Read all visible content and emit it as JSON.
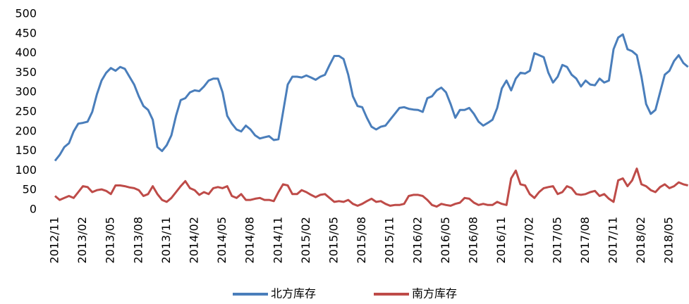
{
  "chart_data": {
    "type": "line",
    "categories": [
      "2012/11",
      null,
      null,
      null,
      null,
      null,
      "2013/02",
      null,
      null,
      null,
      null,
      null,
      "2013/05",
      null,
      null,
      null,
      null,
      null,
      "2013/08",
      null,
      null,
      null,
      null,
      null,
      "2013/11",
      null,
      null,
      null,
      null,
      null,
      "2014/02",
      null,
      null,
      null,
      null,
      null,
      "2014/05",
      null,
      null,
      null,
      null,
      null,
      "2014/08",
      null,
      null,
      null,
      null,
      null,
      "2014/11",
      null,
      null,
      null,
      null,
      null,
      "2015/02",
      null,
      null,
      null,
      null,
      null,
      "2015/05",
      null,
      null,
      null,
      null,
      null,
      "2015/08",
      null,
      null,
      null,
      null,
      null,
      "2015/11",
      null,
      null,
      null,
      null,
      null,
      "2016/02",
      null,
      null,
      null,
      null,
      null,
      "2016/05",
      null,
      null,
      null,
      null,
      null,
      "2016/08",
      null,
      null,
      null,
      null,
      null,
      "2016/11",
      null,
      null,
      null,
      null,
      null,
      "2017/02",
      null,
      null,
      null,
      null,
      null,
      "2017/05",
      null,
      null,
      null,
      null,
      null,
      "2017/08",
      null,
      null,
      null,
      null,
      null,
      "2017/11",
      null,
      null,
      null,
      null,
      null,
      "2018/02",
      null,
      null,
      null,
      null,
      null,
      "2018/05",
      null,
      null,
      null,
      null
    ],
    "series": [
      {
        "name": "北方库存",
        "color": "#4a7ebb",
        "values": [
          125,
          140,
          160,
          170,
          200,
          220,
          222,
          225,
          250,
          295,
          330,
          350,
          362,
          355,
          365,
          360,
          340,
          320,
          290,
          265,
          255,
          230,
          160,
          150,
          165,
          190,
          240,
          280,
          285,
          300,
          305,
          303,
          315,
          330,
          335,
          335,
          300,
          240,
          220,
          205,
          200,
          215,
          205,
          190,
          182,
          185,
          188,
          178,
          180,
          250,
          320,
          340,
          340,
          338,
          343,
          338,
          332,
          340,
          345,
          370,
          393,
          393,
          385,
          345,
          290,
          265,
          262,
          235,
          212,
          205,
          212,
          215,
          230,
          245,
          260,
          262,
          258,
          256,
          255,
          250,
          285,
          290,
          305,
          312,
          300,
          270,
          235,
          255,
          255,
          260,
          245,
          225,
          215,
          222,
          230,
          260,
          310,
          330,
          305,
          335,
          350,
          348,
          355,
          400,
          395,
          390,
          350,
          325,
          340,
          370,
          365,
          345,
          335,
          315,
          330,
          320,
          318,
          335,
          325,
          330,
          410,
          440,
          448,
          410,
          405,
          395,
          340,
          270,
          245,
          255,
          300,
          345,
          355,
          380,
          395,
          375,
          365
        ]
      },
      {
        "name": "南方库存",
        "color": "#be4b48",
        "values": [
          35,
          25,
          30,
          35,
          30,
          45,
          60,
          58,
          45,
          50,
          52,
          48,
          40,
          62,
          62,
          60,
          57,
          55,
          50,
          35,
          40,
          60,
          40,
          25,
          20,
          30,
          45,
          60,
          73,
          55,
          50,
          38,
          45,
          40,
          55,
          58,
          55,
          60,
          35,
          30,
          40,
          25,
          25,
          28,
          30,
          25,
          25,
          22,
          45,
          65,
          62,
          40,
          40,
          50,
          45,
          38,
          32,
          38,
          40,
          30,
          20,
          22,
          20,
          25,
          15,
          10,
          15,
          22,
          28,
          20,
          22,
          15,
          10,
          12,
          12,
          15,
          35,
          38,
          38,
          35,
          25,
          12,
          8,
          15,
          12,
          10,
          15,
          18,
          30,
          28,
          18,
          12,
          15,
          12,
          12,
          20,
          15,
          12,
          80,
          100,
          65,
          62,
          40,
          30,
          45,
          55,
          58,
          60,
          40,
          45,
          60,
          55,
          40,
          38,
          40,
          45,
          48,
          35,
          40,
          28,
          20,
          75,
          80,
          60,
          75,
          105,
          65,
          60,
          50,
          45,
          58,
          65,
          55,
          60,
          70,
          65,
          62
        ]
      }
    ],
    "ylim": [
      0,
      500
    ],
    "yticks": [
      0,
      50,
      100,
      150,
      200,
      250,
      300,
      350,
      400,
      450,
      500
    ],
    "grid": false,
    "legend": "bottom"
  }
}
